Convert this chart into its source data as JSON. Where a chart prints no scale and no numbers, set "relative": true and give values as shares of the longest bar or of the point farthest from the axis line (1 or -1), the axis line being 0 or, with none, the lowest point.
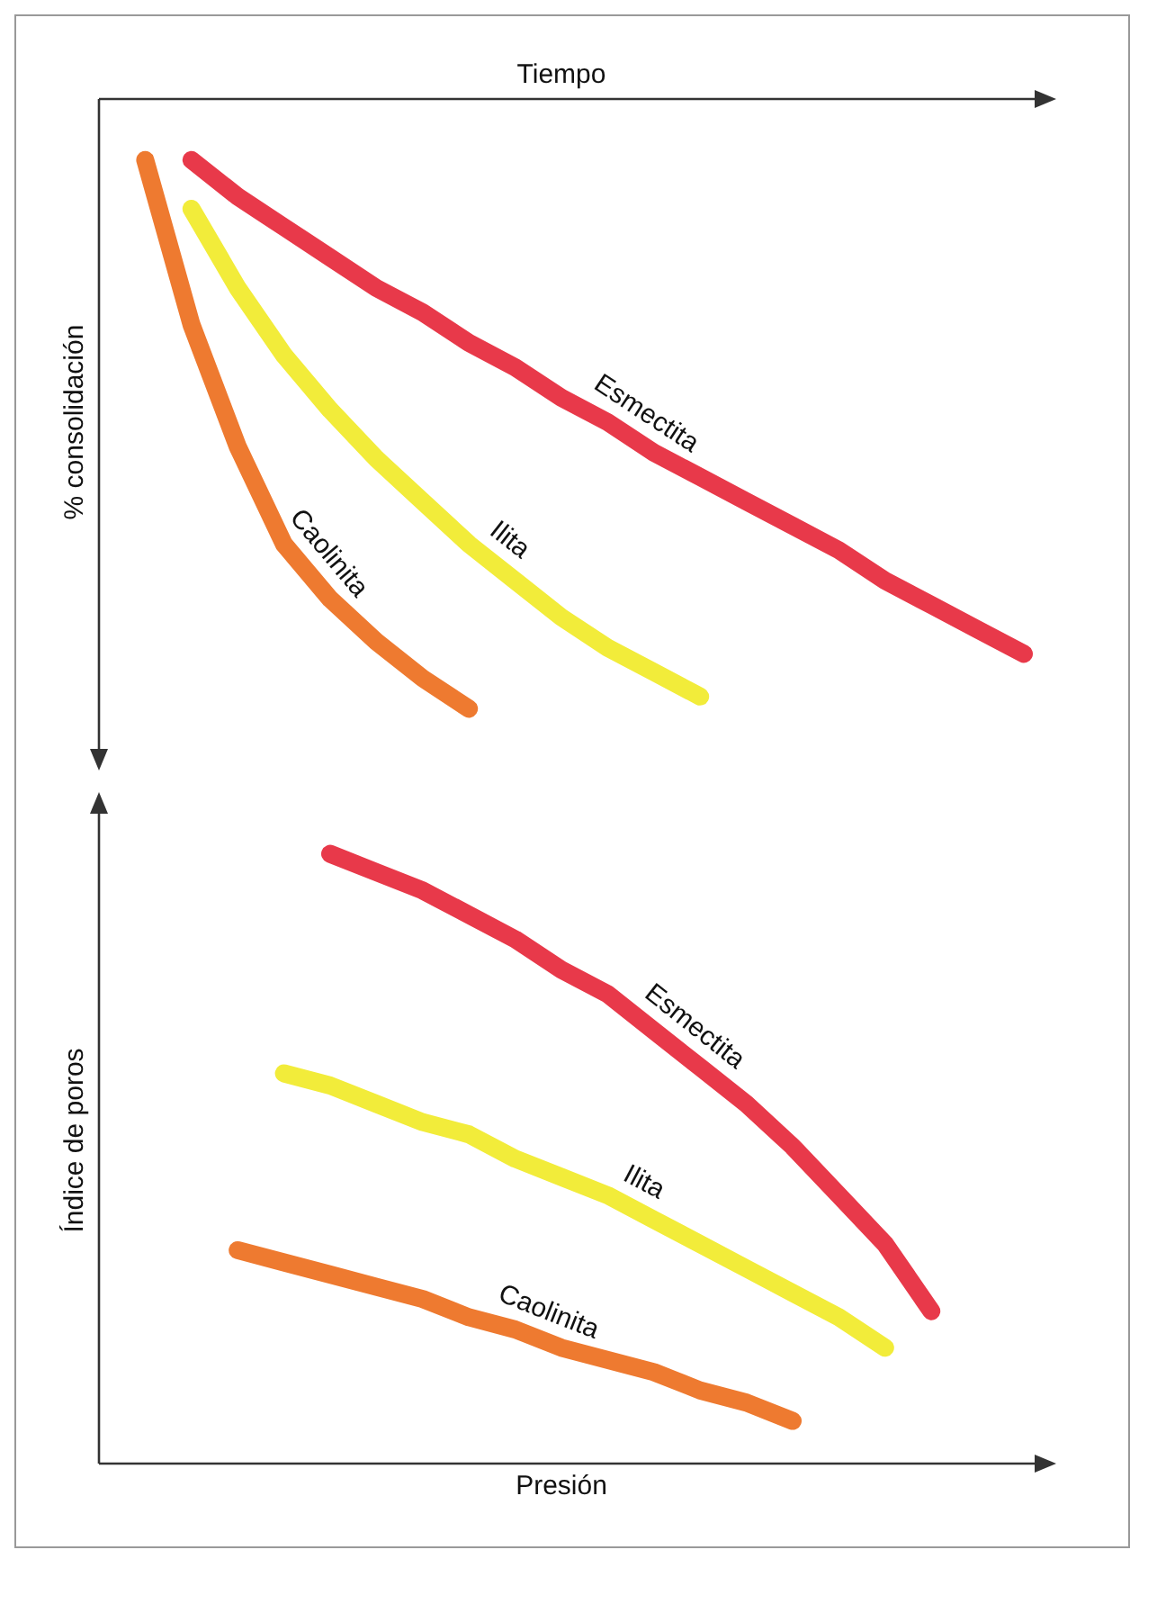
{
  "chart_data": [
    {
      "type": "line",
      "xlabel": "Tiempo",
      "ylabel": "% consolidación",
      "relative": true,
      "categories": [
        null,
        null,
        null,
        null,
        null,
        null,
        null,
        null,
        null,
        null,
        null,
        null,
        null,
        null,
        null,
        null,
        null,
        null,
        null,
        null,
        null
      ],
      "grid": false,
      "legend": false,
      "marker": "none",
      "line_style": "solid",
      "series": [
        {
          "name": "Esmectita",
          "color": "#e8394a",
          "values": [
            null,
            null,
            -0.1,
            -0.16,
            -0.21,
            -0.26,
            -0.31,
            -0.35,
            -0.4,
            -0.44,
            -0.49,
            -0.53,
            -0.58,
            -0.62,
            -0.66,
            -0.7,
            -0.74,
            -0.79,
            -0.83,
            -0.87,
            -0.91
          ]
        },
        {
          "name": "Ilita",
          "color": "#f2ec3a",
          "values": [
            null,
            null,
            -0.18,
            -0.31,
            -0.42,
            -0.51,
            -0.59,
            -0.66,
            -0.73,
            -0.79,
            -0.85,
            -0.9,
            -0.94,
            -0.98,
            null,
            null,
            null,
            null,
            null,
            null,
            null
          ]
        },
        {
          "name": "Caolinita",
          "color": "#ee7a30",
          "values": [
            null,
            -0.1,
            -0.37,
            -0.57,
            -0.73,
            -0.82,
            -0.89,
            -0.95,
            -1.0,
            null,
            null,
            null,
            null,
            null,
            null,
            null,
            null,
            null,
            null,
            null,
            null
          ]
        }
      ]
    },
    {
      "type": "line",
      "xlabel": "Presión",
      "ylabel": "Índice de poros",
      "relative": true,
      "categories": [
        null,
        null,
        null,
        null,
        null,
        null,
        null,
        null,
        null,
        null,
        null,
        null,
        null,
        null,
        null,
        null,
        null,
        null,
        null,
        null,
        null
      ],
      "grid": false,
      "legend": false,
      "marker": "none",
      "line_style": "solid",
      "series": [
        {
          "name": "Esmectita",
          "color": "#e8394a",
          "values": [
            null,
            null,
            null,
            null,
            null,
            1.0,
            0.97,
            0.94,
            0.9,
            0.86,
            0.81,
            0.77,
            0.71,
            0.65,
            0.59,
            0.52,
            0.44,
            0.36,
            0.25,
            null,
            null
          ]
        },
        {
          "name": "Ilita",
          "color": "#f2ec3a",
          "values": [
            null,
            null,
            null,
            null,
            0.64,
            0.62,
            0.59,
            0.56,
            0.54,
            0.5,
            0.47,
            0.44,
            0.4,
            0.36,
            0.32,
            0.28,
            0.24,
            0.19,
            null,
            null,
            null
          ]
        },
        {
          "name": "Caolinita",
          "color": "#ee7a30",
          "values": [
            null,
            null,
            null,
            0.35,
            0.33,
            0.31,
            0.29,
            0.27,
            0.24,
            0.22,
            0.19,
            0.17,
            0.15,
            0.12,
            0.1,
            0.07,
            null,
            null,
            null,
            null,
            null
          ]
        }
      ]
    }
  ]
}
